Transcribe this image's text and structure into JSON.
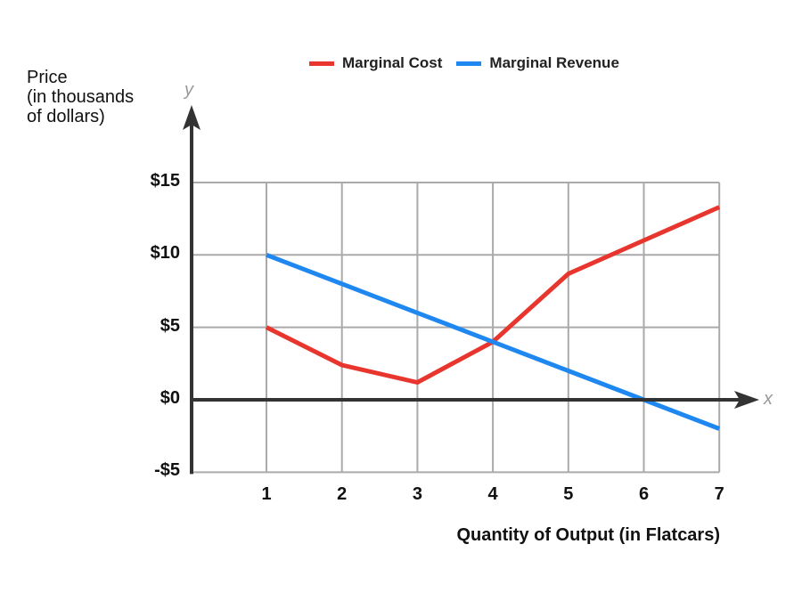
{
  "chart_data": {
    "type": "line",
    "title": "",
    "xlabel": "Quantity of Output (in Flatcars)",
    "ylabel": "Price (in thousands of dollars)",
    "ylabel_lines": [
      "Price",
      "(in thousands",
      "of dollars)"
    ],
    "x_axis_letter": "x",
    "y_axis_letter": "y",
    "x": [
      1,
      2,
      3,
      4,
      5,
      6,
      7
    ],
    "x_tick_labels": [
      "1",
      "2",
      "3",
      "4",
      "5",
      "6",
      "7"
    ],
    "y_ticks": [
      15,
      10,
      5,
      0,
      -5
    ],
    "y_tick_labels": [
      "$15",
      "$10",
      "$5",
      "$0",
      "-$5"
    ],
    "ylim": [
      -5,
      15
    ],
    "xlim": [
      0,
      7
    ],
    "grid": true,
    "legend_position": "top",
    "series": [
      {
        "name": "Marginal Cost",
        "color": "#e8352e",
        "values": [
          5,
          2.4,
          1.2,
          4,
          8.7,
          11,
          13.3
        ]
      },
      {
        "name": "Marginal Revenue",
        "color": "#1e88f0",
        "values": [
          10,
          8,
          6,
          4,
          2,
          0,
          -2
        ]
      }
    ]
  },
  "legend": [
    {
      "label": "Marginal Cost",
      "color": "#e8352e"
    },
    {
      "label": "Marginal Revenue",
      "color": "#1e88f0"
    }
  ],
  "colors": {
    "axis": "#333333",
    "grid": "#aaaaaa"
  }
}
